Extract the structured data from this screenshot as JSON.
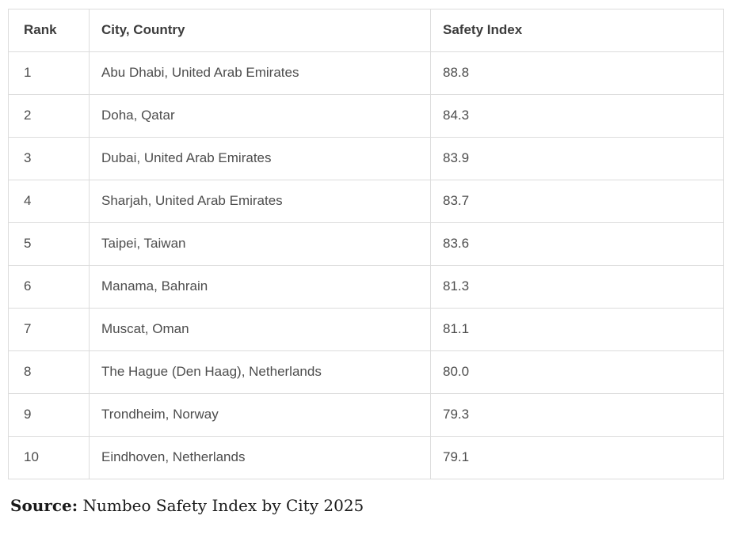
{
  "chart_data": {
    "type": "table",
    "columns": [
      "Rank",
      "City, Country",
      "Safety Index"
    ],
    "rows": [
      [
        "1",
        "Abu Dhabi, United Arab Emirates",
        "88.8"
      ],
      [
        "2",
        "Doha, Qatar",
        "84.3"
      ],
      [
        "3",
        "Dubai, United Arab Emirates",
        "83.9"
      ],
      [
        "4",
        "Sharjah, United Arab Emirates",
        "83.7"
      ],
      [
        "5",
        "Taipei, Taiwan",
        "83.6"
      ],
      [
        "6",
        "Manama, Bahrain",
        "81.3"
      ],
      [
        "7",
        "Muscat, Oman",
        "81.1"
      ],
      [
        "8",
        "The Hague (Den Haag), Netherlands",
        "80.0"
      ],
      [
        "9",
        "Trondheim, Norway",
        "79.3"
      ],
      [
        "10",
        "Eindhoven, Netherlands",
        "79.1"
      ]
    ],
    "source_label": "Source:",
    "source_text": "Numbeo Safety Index by City 2025",
    "title": "",
    "legend_position": "none",
    "grid": true
  },
  "colors": {
    "background": "#ffffff",
    "border": "#dcdcdc",
    "header_text": "#3c3c3c",
    "cell_text": "#4d4d4d",
    "source_text": "#1a1a1a"
  }
}
